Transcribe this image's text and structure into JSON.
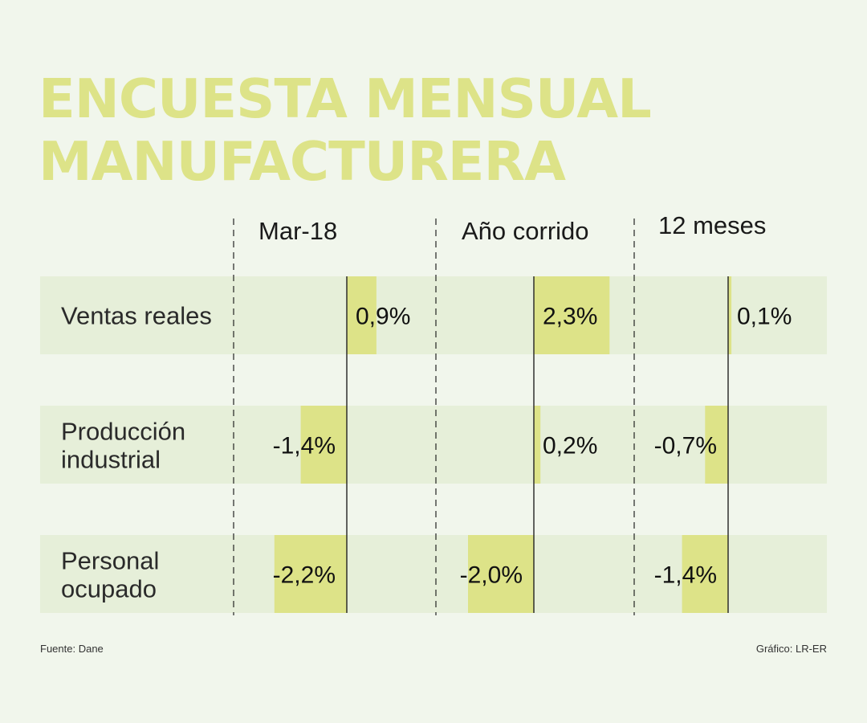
{
  "title_lines": [
    "ENCUESTA MENSUAL",
    "MANUFACTURERA"
  ],
  "colors": {
    "background": "#f1f6ec",
    "row_band": "#e6efd9",
    "bar": "#dde388",
    "title": "#dde388"
  },
  "chart_data": {
    "type": "bar",
    "orientation": "horizontal",
    "title": "ENCUESTA MENSUAL MANUFACTURERA",
    "categories": [
      "Ventas reales",
      "Producción industrial",
      "Personal ocupado"
    ],
    "series": [
      {
        "name": "Mar-18",
        "values": [
          0.9,
          -1.4,
          -2.2
        ],
        "labels": [
          "0,9%",
          "-1,4%",
          "-2,2%"
        ]
      },
      {
        "name": "Año corrido",
        "values": [
          2.3,
          0.2,
          -2.0
        ],
        "labels": [
          "2,3%",
          "0,2%",
          "-2,0%"
        ]
      },
      {
        "name": "12 meses",
        "values": [
          0.1,
          -0.7,
          -1.4
        ],
        "labels": [
          "0,1%",
          "-0,7%",
          "-1,4%"
        ]
      }
    ],
    "unit": "%"
  },
  "footer": {
    "source": "Fuente: Dane",
    "credit": "Gráfico: LR-ER"
  }
}
